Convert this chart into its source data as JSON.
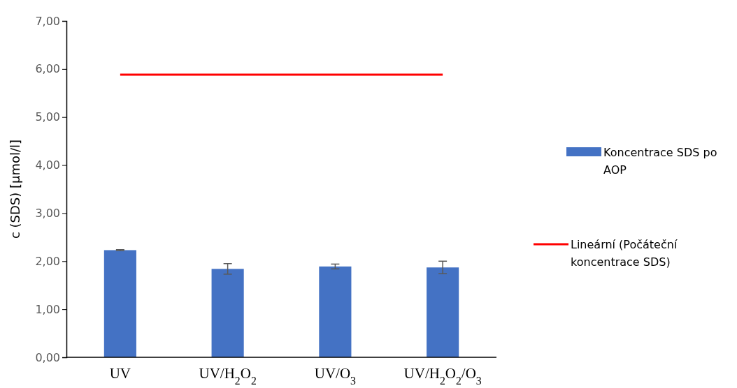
{
  "chart_data": {
    "type": "bar",
    "ylabel": "c (SDS) [µmol/l]",
    "categories": [
      "UV",
      "UV/H$_{2}$O$_{2}$",
      "UV/O$_{3}$",
      "UV/H$_{2}$O$_{2}$/O$_{3}$"
    ],
    "series": [
      {
        "name": "Koncentrace SDS po AOP",
        "color": "#4472c4",
        "values": [
          2.23,
          1.84,
          1.89,
          1.87
        ],
        "errors": [
          0.01,
          0.11,
          0.05,
          0.13
        ]
      },
      {
        "name": "Lineární (Počáteční koncentrace SDS)",
        "type": "line",
        "color": "#ff0000",
        "values": [
          5.88,
          5.88,
          5.88,
          5.88
        ]
      }
    ],
    "ylim": [
      0,
      7
    ],
    "yticks": [
      {
        "value": 0,
        "label": "0,00"
      },
      {
        "value": 1,
        "label": "1,00"
      },
      {
        "value": 2,
        "label": "2,00"
      },
      {
        "value": 3,
        "label": "3,00"
      },
      {
        "value": 4,
        "label": "4,00"
      },
      {
        "value": 5,
        "label": "5,00"
      },
      {
        "value": 6,
        "label": "6,00"
      },
      {
        "value": 7,
        "label": "7,00"
      }
    ],
    "grid": false,
    "legend": "right",
    "marker": "none"
  }
}
